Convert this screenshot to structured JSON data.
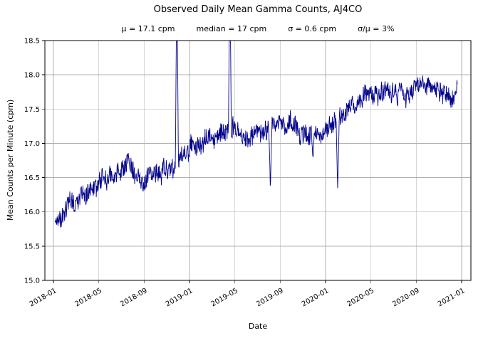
{
  "chart_data": {
    "type": "line",
    "title": "Observed Daily Mean Gamma Counts, AJ4CO",
    "stats_line": {
      "mu": "μ = 17.1 cpm",
      "median": "median = 17 cpm",
      "sigma": "σ = 0.6 cpm",
      "sigma_over_mu": "σ/μ = 3%"
    },
    "xlabel": "Date",
    "ylabel": "Mean Counts per Minute (cpm)",
    "x_tick_labels": [
      "2018-01",
      "2018-05",
      "2018-09",
      "2019-01",
      "2019-05",
      "2019-09",
      "2020-01",
      "2020-05",
      "2020-09",
      "2021-01"
    ],
    "y_tick_labels": [
      "15.0",
      "15.5",
      "16.0",
      "16.5",
      "17.0",
      "17.5",
      "18.0",
      "18.5"
    ],
    "ylim": [
      15.0,
      18.5
    ],
    "grid": true,
    "legend": "none",
    "line_color": "#00008b",
    "grid_color": "#b0b0b0",
    "series": [
      {
        "name": "daily-mean-gamma-counts",
        "noise_cpm": 0.085,
        "anchors": [
          {
            "date": "2018-01-05",
            "y": 15.8
          },
          {
            "date": "2018-01-15",
            "y": 15.9
          },
          {
            "date": "2018-02-01",
            "y": 15.95
          },
          {
            "date": "2018-02-15",
            "y": 16.05
          },
          {
            "date": "2018-03-01",
            "y": 16.1
          },
          {
            "date": "2018-04-01",
            "y": 16.3
          },
          {
            "date": "2018-05-01",
            "y": 16.4
          },
          {
            "date": "2018-06-01",
            "y": 16.5
          },
          {
            "date": "2018-07-01",
            "y": 16.6
          },
          {
            "date": "2018-07-25",
            "y": 16.65
          },
          {
            "date": "2018-08-15",
            "y": 16.5
          },
          {
            "date": "2018-08-28",
            "y": 16.3
          },
          {
            "date": "2018-09-10",
            "y": 16.55
          },
          {
            "date": "2018-10-05",
            "y": 16.55
          },
          {
            "date": "2018-11-01",
            "y": 16.6
          },
          {
            "date": "2018-12-01",
            "y": 16.7
          },
          {
            "date": "2018-12-25",
            "y": 16.95
          },
          {
            "date": "2019-01-15",
            "y": 17.0
          },
          {
            "date": "2019-02-10",
            "y": 17.05
          },
          {
            "date": "2019-03-10",
            "y": 17.1
          },
          {
            "date": "2019-04-10",
            "y": 17.15
          },
          {
            "date": "2019-05-01",
            "y": 17.2
          },
          {
            "date": "2019-06-01",
            "y": 17.1
          },
          {
            "date": "2019-07-01",
            "y": 17.15
          },
          {
            "date": "2019-08-01",
            "y": 17.25
          },
          {
            "date": "2019-09-01",
            "y": 17.3
          },
          {
            "date": "2019-10-05",
            "y": 17.25
          },
          {
            "date": "2019-10-25",
            "y": 17.1
          },
          {
            "date": "2019-11-15",
            "y": 17.15
          },
          {
            "date": "2019-12-10",
            "y": 17.2
          },
          {
            "date": "2020-01-10",
            "y": 17.25
          },
          {
            "date": "2020-02-01",
            "y": 17.35
          },
          {
            "date": "2020-03-01",
            "y": 17.5
          },
          {
            "date": "2020-04-01",
            "y": 17.65
          },
          {
            "date": "2020-04-20",
            "y": 17.8
          },
          {
            "date": "2020-05-15",
            "y": 17.7
          },
          {
            "date": "2020-06-05",
            "y": 17.8
          },
          {
            "date": "2020-07-01",
            "y": 17.8
          },
          {
            "date": "2020-08-01",
            "y": 17.75
          },
          {
            "date": "2020-09-01",
            "y": 17.8
          },
          {
            "date": "2020-10-01",
            "y": 17.8
          },
          {
            "date": "2020-11-01",
            "y": 17.75
          },
          {
            "date": "2020-12-20",
            "y": 17.7
          }
        ],
        "spikes": [
          {
            "date": "2018-11-28",
            "peak": 19.8,
            "width_days": 4,
            "direction": "up"
          },
          {
            "date": "2019-04-18",
            "peak": 19.5,
            "width_days": 4,
            "direction": "up"
          },
          {
            "date": "2019-08-05",
            "peak": 16.3,
            "width_days": 4,
            "direction": "down"
          },
          {
            "date": "2019-11-28",
            "peak": 16.78,
            "width_days": 4,
            "direction": "down"
          },
          {
            "date": "2020-02-03",
            "peak": 16.35,
            "width_days": 4,
            "direction": "down"
          }
        ]
      }
    ]
  }
}
